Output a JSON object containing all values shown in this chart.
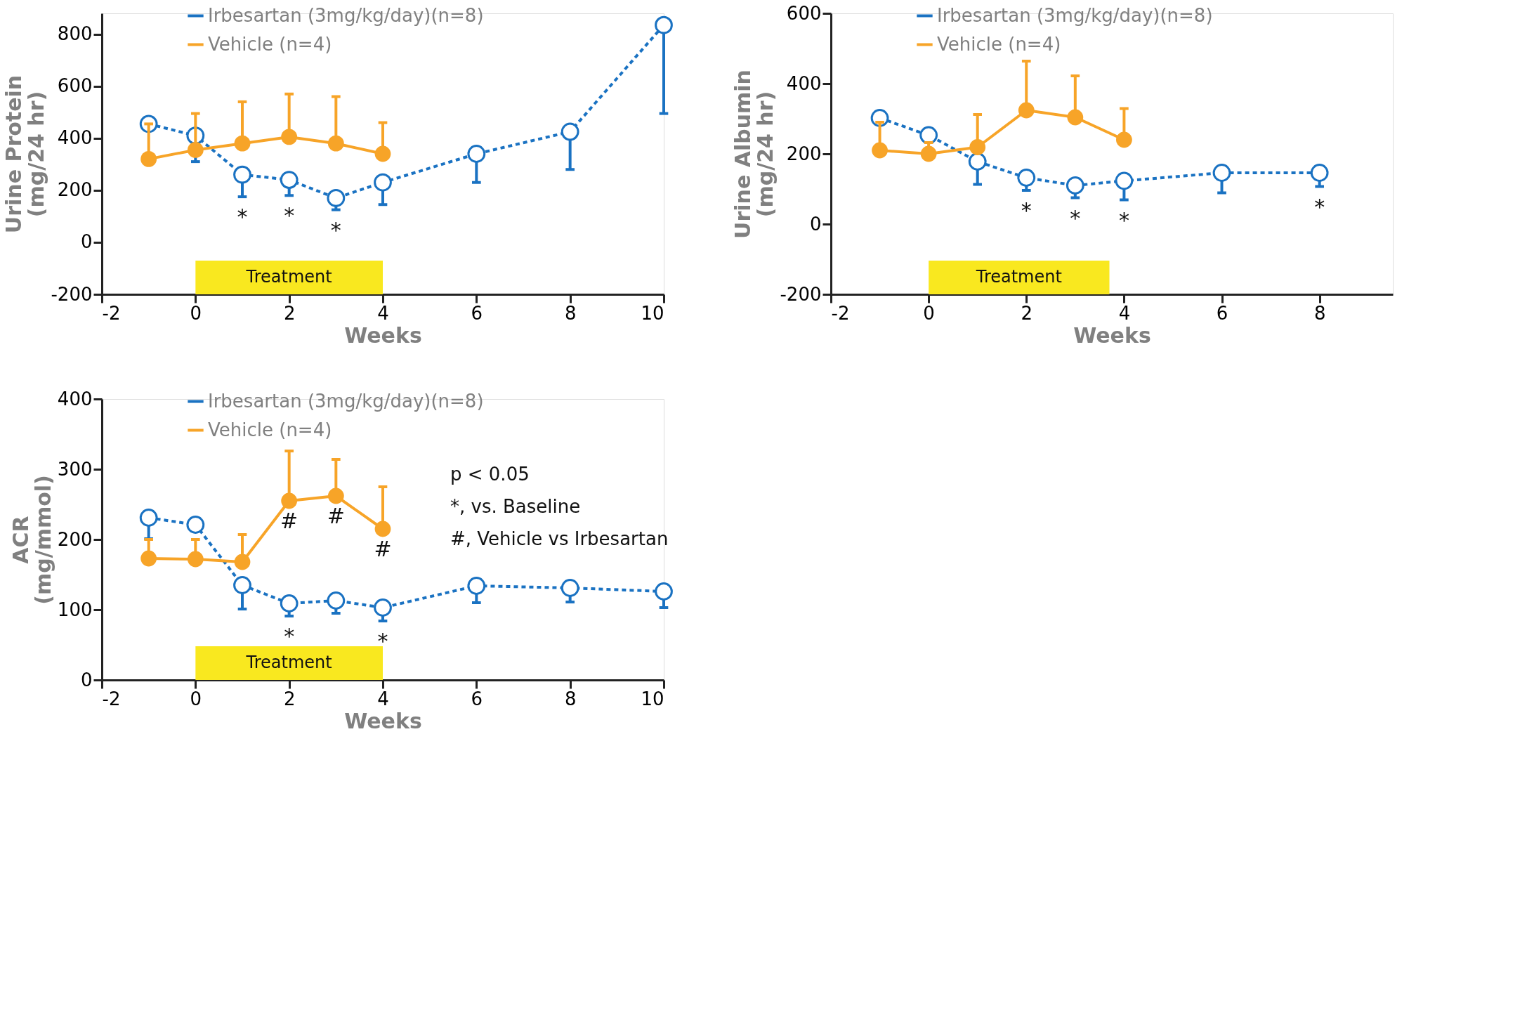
{
  "chart_data": [
    {
      "type": "line",
      "xlabel": "Weeks",
      "ylabel": "Urine Protein\n(mg/24 hr)",
      "xlim": [
        -2,
        10
      ],
      "xticks": [
        -2,
        0,
        2,
        4,
        6,
        8,
        10
      ],
      "ylim": [
        -200,
        880
      ],
      "yticks": [
        -200,
        0,
        200,
        400,
        600,
        800
      ],
      "grid": false,
      "legend": "top",
      "marker": "circle",
      "series": [
        {
          "name": "Irbesartan (3mg/kg/day)(n=8)",
          "color": "#1a72c2",
          "line_style": "dashed",
          "x": [
            -1,
            0,
            1,
            2,
            3,
            4,
            6,
            8,
            10
          ],
          "values": [
            455,
            410,
            260,
            240,
            170,
            230,
            340,
            425,
            835
          ],
          "errors": [
            null,
            [
              310,
              410
            ],
            [
              175,
              260
            ],
            [
              180,
              240
            ],
            [
              125,
              170
            ],
            [
              145,
              230
            ],
            [
              230,
              340
            ],
            [
              280,
              425
            ],
            [
              495,
              835
            ]
          ]
        },
        {
          "name": "Vehicle (n=4)",
          "color": "#f7a428",
          "line_style": "solid",
          "x": [
            -1,
            0,
            1,
            2,
            3,
            4
          ],
          "values": [
            320,
            355,
            380,
            405,
            380,
            340
          ],
          "errors": [
            [
              320,
              455
            ],
            [
              355,
              495
            ],
            [
              380,
              540
            ],
            [
              405,
              570
            ],
            [
              380,
              560
            ],
            [
              340,
              460
            ]
          ]
        }
      ],
      "bands": [
        {
          "axis": "x",
          "from": 0,
          "to": 4,
          "label": "Treatment",
          "color": "#f9e81f"
        }
      ],
      "annotations": [
        {
          "text": "*",
          "x": 1,
          "y": 175
        },
        {
          "text": "*",
          "x": 2,
          "y": 180
        },
        {
          "text": "*",
          "x": 3,
          "y": 125
        }
      ]
    },
    {
      "type": "line",
      "xlabel": "Weeks",
      "ylabel": "Urine Albumin\n(mg/24 hr)",
      "xlim": [
        -2,
        9.5
      ],
      "xticks": [
        -2,
        0,
        2,
        4,
        6,
        8
      ],
      "ylim": [
        -200,
        600
      ],
      "yticks": [
        -200,
        0,
        200,
        400,
        600
      ],
      "grid": false,
      "legend": "top",
      "marker": "circle",
      "series": [
        {
          "name": "Irbesartan (3mg/kg/day)(n=8)",
          "color": "#1a72c2",
          "line_style": "dashed",
          "x": [
            -1,
            0,
            1,
            2,
            3,
            4,
            6,
            8
          ],
          "values": [
            302,
            253,
            178,
            132,
            110,
            123,
            146,
            146
          ],
          "errors": [
            null,
            null,
            [
              113,
              178
            ],
            [
              96,
              132
            ],
            [
              75,
              110
            ],
            [
              69,
              123
            ],
            [
              89,
              146
            ],
            [
              107,
              146
            ]
          ]
        },
        {
          "name": "Vehicle (n=4)",
          "color": "#f7a428",
          "line_style": "solid",
          "x": [
            -1,
            0,
            1,
            2,
            3,
            4
          ],
          "values": [
            210,
            200,
            219,
            324,
            304,
            240
          ],
          "errors": [
            [
              210,
              290
            ],
            [
              200,
              232
            ],
            [
              219,
              312
            ],
            [
              324,
              464
            ],
            [
              304,
              422
            ],
            [
              240,
              329
            ]
          ]
        }
      ],
      "bands": [
        {
          "axis": "x",
          "from": 0,
          "to": 3.7,
          "label": "Treatment",
          "color": "#f9e81f"
        }
      ],
      "annotations": [
        {
          "text": "*",
          "x": 2,
          "y": 96
        },
        {
          "text": "*",
          "x": 3,
          "y": 75
        },
        {
          "text": "*",
          "x": 4,
          "y": 69
        },
        {
          "text": "*",
          "x": 8,
          "y": 107
        }
      ]
    },
    {
      "type": "line",
      "xlabel": "Weeks",
      "ylabel": "ACR\n(mg/mmol)",
      "xlim": [
        -2,
        10
      ],
      "xticks": [
        -2,
        0,
        2,
        4,
        6,
        8,
        10
      ],
      "ylim": [
        0,
        400
      ],
      "yticks": [
        0,
        100,
        200,
        300,
        400
      ],
      "grid": false,
      "legend": "top",
      "marker": "circle",
      "series": [
        {
          "name": "Irbesartan (3mg/kg/day)(n=8)",
          "color": "#1a72c2",
          "line_style": "dashed",
          "x": [
            -1,
            0,
            1,
            2,
            3,
            4,
            6,
            8,
            10
          ],
          "values": [
            231,
            221,
            135,
            109,
            113,
            103,
            134,
            131,
            126
          ],
          "errors": [
            [
              201,
              231
            ],
            null,
            [
              101,
              135
            ],
            [
              91,
              109
            ],
            [
              95,
              113
            ],
            [
              84,
              103
            ],
            [
              110,
              134
            ],
            [
              111,
              131
            ],
            [
              103,
              126
            ]
          ]
        },
        {
          "name": "Vehicle (n=4)",
          "color": "#f7a428",
          "line_style": "solid",
          "x": [
            -1,
            0,
            1,
            2,
            3,
            4
          ],
          "values": [
            173,
            172,
            168,
            255,
            262,
            215
          ],
          "errors": [
            [
              173,
              200
            ],
            [
              172,
              200
            ],
            [
              168,
              207
            ],
            [
              255,
              326
            ],
            [
              262,
              314
            ],
            [
              215,
              275
            ]
          ]
        }
      ],
      "bands": [
        {
          "axis": "x",
          "from": 0,
          "to": 4,
          "label": "Treatment",
          "color": "#f9e81f"
        }
      ],
      "annotations": [
        {
          "text": "#",
          "x": 2,
          "y": 255
        },
        {
          "text": "#",
          "x": 3,
          "y": 262
        },
        {
          "text": "#",
          "x": 4,
          "y": 215
        },
        {
          "text": "*",
          "x": 2,
          "y": 91
        },
        {
          "text": "*",
          "x": 4,
          "y": 84
        },
        "p < 0.05",
        "*, vs. Baseline",
        "#, Vehicle vs Irbesartan"
      ]
    }
  ]
}
